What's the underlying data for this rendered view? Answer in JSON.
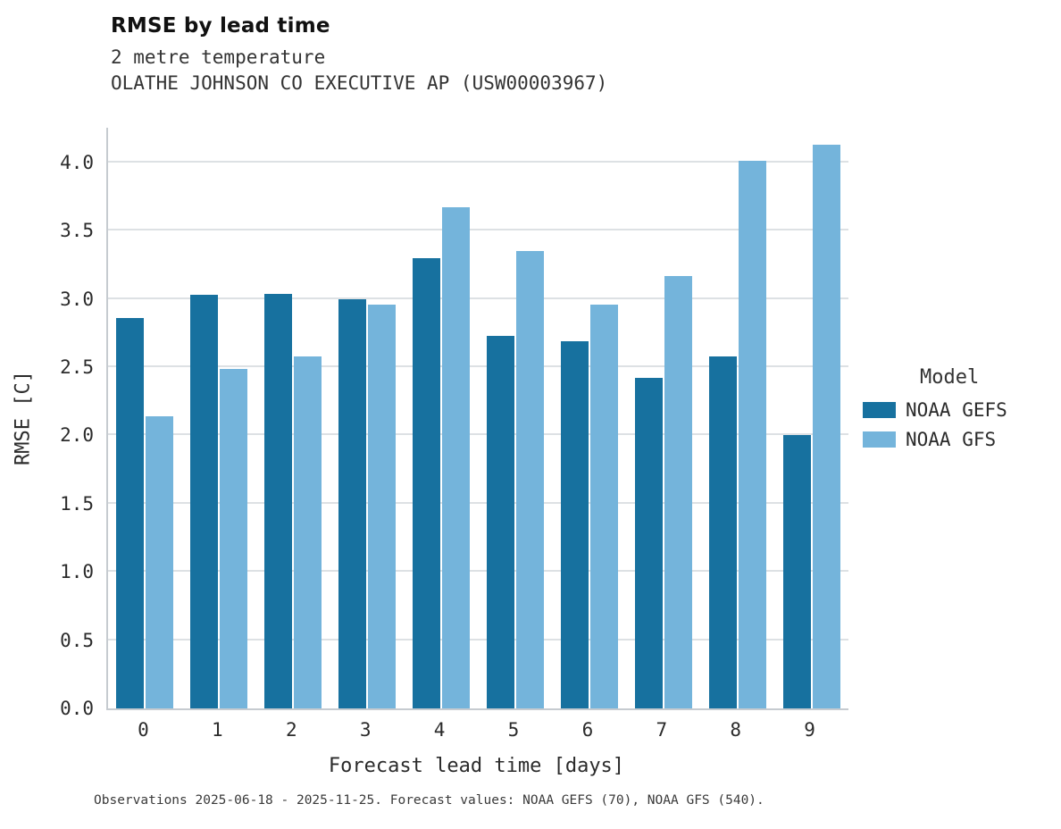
{
  "chart_data": {
    "type": "bar",
    "title": "RMSE by lead time",
    "subtitle": [
      "2 metre temperature",
      "OLATHE JOHNSON CO EXECUTIVE AP (USW00003967)"
    ],
    "xlabel": "Forecast lead time [days]",
    "ylabel": "RMSE [C]",
    "categories": [
      "0",
      "1",
      "2",
      "3",
      "4",
      "5",
      "6",
      "7",
      "8",
      "9"
    ],
    "series": [
      {
        "name": "NOAA GEFS",
        "color": "#17719f",
        "values": [
          2.86,
          3.03,
          3.04,
          3.0,
          3.3,
          2.73,
          2.69,
          2.42,
          2.58,
          2.0
        ]
      },
      {
        "name": "NOAA GFS",
        "color": "#74b4db",
        "values": [
          2.14,
          2.49,
          2.58,
          2.96,
          3.67,
          3.35,
          2.96,
          3.17,
          4.01,
          4.13
        ]
      }
    ],
    "ylim": [
      0,
      4.255
    ],
    "yticks": [
      0,
      0.5,
      1,
      1.5,
      2,
      2.5,
      3,
      3.5,
      4
    ],
    "grid": true,
    "legend": {
      "title": "Model",
      "position": "right-center"
    }
  },
  "caption": "Observations 2025-06-18 - 2025-11-25. Forecast values: NOAA GEFS (70), NOAA GFS (540)."
}
